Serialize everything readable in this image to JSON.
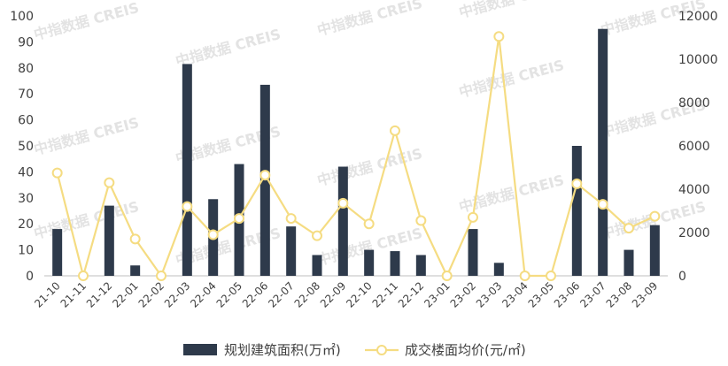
{
  "chart_data": {
    "type": "bar+line",
    "categories": [
      "21-10",
      "21-11",
      "21-12",
      "22-01",
      "22-02",
      "22-03",
      "22-04",
      "22-05",
      "22-06",
      "22-07",
      "22-08",
      "22-09",
      "22-10",
      "22-11",
      "22-12",
      "23-01",
      "23-02",
      "23-03",
      "23-04",
      "23-05",
      "23-06",
      "23-07",
      "23-08",
      "23-09"
    ],
    "series": [
      {
        "name": "规划建筑面积(万㎡)",
        "type": "bar",
        "axis": "left",
        "color": "#2e3a4b",
        "values": [
          18,
          0,
          27,
          4,
          0,
          81.5,
          29.5,
          43,
          73.5,
          19,
          8,
          42,
          10,
          9.5,
          8,
          0,
          18,
          5,
          0,
          0,
          50,
          95,
          10,
          19.5
        ]
      },
      {
        "name": "成交楼面均价(元/㎡)",
        "type": "line",
        "axis": "right",
        "color": "#f5dc82",
        "values": [
          4750,
          0,
          4300,
          1700,
          0,
          3200,
          1900,
          2650,
          4650,
          2650,
          1850,
          3350,
          2400,
          6700,
          2550,
          0,
          2700,
          11050,
          0,
          0,
          4250,
          3300,
          2200,
          2750
        ]
      }
    ],
    "yleft": {
      "min": 0,
      "max": 100,
      "ticks": [
        0,
        10,
        20,
        30,
        40,
        50,
        60,
        70,
        80,
        90,
        100
      ]
    },
    "yright": {
      "min": 0,
      "max": 12000,
      "ticks": [
        0,
        2000,
        4000,
        6000,
        8000,
        10000,
        12000
      ]
    },
    "grid": false,
    "legend_position": "bottom-center",
    "watermark": "中指数据 CREIS"
  }
}
